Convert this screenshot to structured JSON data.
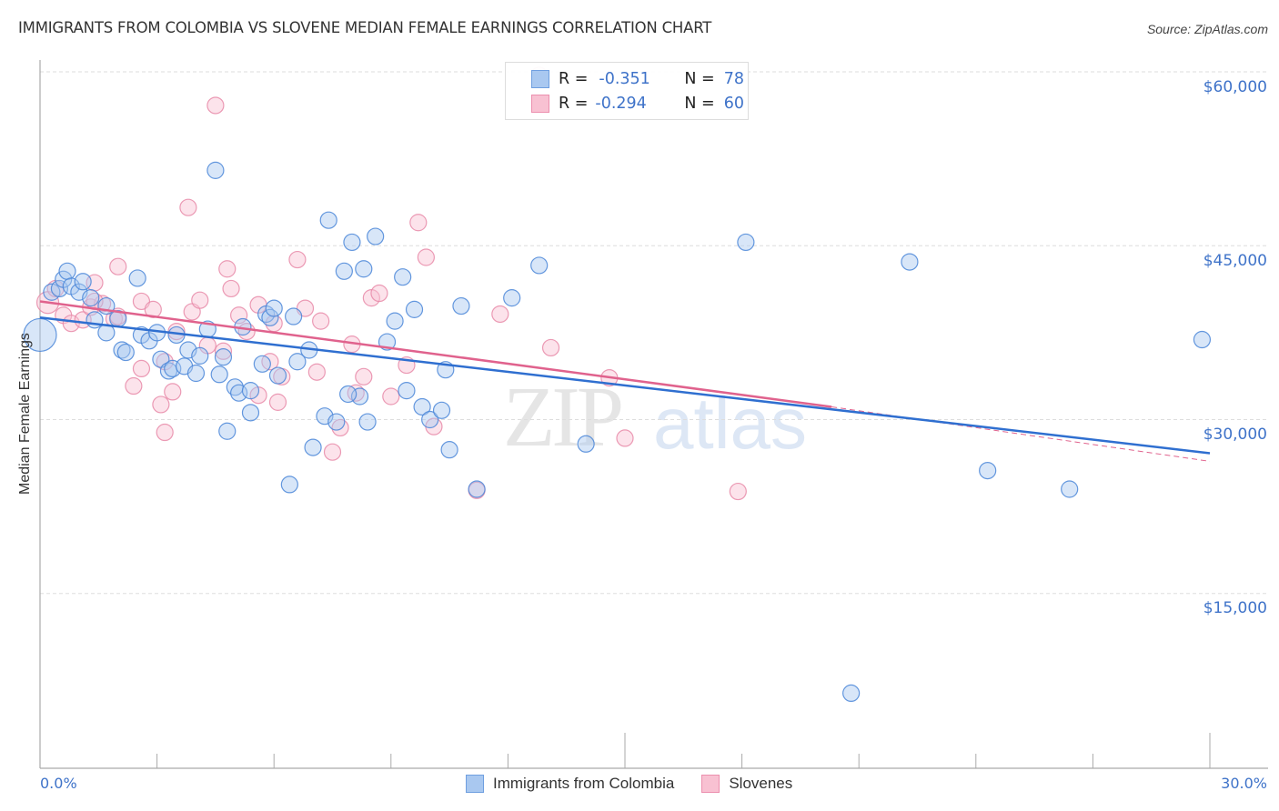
{
  "header": {
    "title": "IMMIGRANTS FROM COLOMBIA VS SLOVENE MEDIAN FEMALE EARNINGS CORRELATION CHART",
    "source": "Source: ZipAtlas.com"
  },
  "legend_box": {
    "rows": [
      {
        "r_label": "R =",
        "r_value": "-0.351",
        "n_label": "N =",
        "n_value": "78",
        "color": "#a9c8f0",
        "border": "#6f9fe0"
      },
      {
        "r_label": "R =",
        "r_value": "-0.294",
        "n_label": "N =",
        "n_value": "60",
        "color": "#f8c1d2",
        "border": "#ec8fae"
      }
    ]
  },
  "bottom_legend": {
    "items": [
      {
        "label": "Immigrants from Colombia",
        "color": "#a9c8f0",
        "border": "#6f9fe0"
      },
      {
        "label": "Slovenes",
        "color": "#f8c1d2",
        "border": "#ec8fae"
      }
    ]
  },
  "axes": {
    "ylabel": "Median Female Earnings",
    "yticks": [
      "$60,000",
      "$45,000",
      "$30,000",
      "$15,000"
    ],
    "xticks": [
      "0.0%",
      "30.0%"
    ]
  },
  "watermark": {
    "part1": "ZIP",
    "part2": "atlas"
  },
  "colors": {
    "blue_fill": "#a9c8f0",
    "blue_stroke": "#4a86d8",
    "blue_line": "#2f6fd0",
    "pink_fill": "#f8c1d2",
    "pink_stroke": "#e889a8",
    "pink_line": "#e0628d",
    "tick_label": "#3f73c9",
    "grid": "#dddddd"
  },
  "chart_data": {
    "type": "scatter",
    "title": "IMMIGRANTS FROM COLOMBIA VS SLOVENE MEDIAN FEMALE EARNINGS CORRELATION CHART",
    "xlabel": "",
    "ylabel": "Median Female Earnings",
    "xlim": [
      0,
      30
    ],
    "ylim": [
      0,
      62000
    ],
    "x_unit": "%",
    "y_ticks": [
      15000,
      30000,
      45000,
      60000
    ],
    "x_ticks": [
      0,
      30
    ],
    "grid": true,
    "legend_position": "top-center and bottom",
    "series": [
      {
        "name": "Immigrants from Colombia",
        "R": -0.351,
        "N": 78,
        "trend": {
          "x": [
            0,
            30
          ],
          "y": [
            38800,
            27100
          ]
        },
        "points": [
          [
            0.0,
            37300,
            18
          ],
          [
            0.3,
            41000
          ],
          [
            0.5,
            41300
          ],
          [
            0.6,
            42100
          ],
          [
            0.7,
            42800
          ],
          [
            0.8,
            41500
          ],
          [
            1.0,
            41000
          ],
          [
            1.1,
            41900
          ],
          [
            1.3,
            40500
          ],
          [
            1.4,
            38600
          ],
          [
            1.7,
            39800
          ],
          [
            1.7,
            37500
          ],
          [
            2.1,
            36000
          ],
          [
            2.2,
            35800
          ],
          [
            2.5,
            42200
          ],
          [
            2.6,
            37300
          ],
          [
            2.8,
            36800
          ],
          [
            3.0,
            37500
          ],
          [
            3.1,
            35200
          ],
          [
            3.3,
            34200
          ],
          [
            3.4,
            34400
          ],
          [
            3.5,
            37300
          ],
          [
            3.7,
            34600
          ],
          [
            3.8,
            36000
          ],
          [
            4.0,
            34000
          ],
          [
            4.1,
            35500
          ],
          [
            4.3,
            37800
          ],
          [
            4.6,
            33900
          ],
          [
            4.5,
            51500
          ],
          [
            4.7,
            35400
          ],
          [
            4.8,
            29000
          ],
          [
            5.0,
            32800
          ],
          [
            5.1,
            32300
          ],
          [
            5.2,
            38000
          ],
          [
            5.4,
            30600
          ],
          [
            5.7,
            34800
          ],
          [
            5.8,
            39100
          ],
          [
            5.9,
            38800
          ],
          [
            6.0,
            39600
          ],
          [
            6.1,
            33800
          ],
          [
            6.4,
            24400
          ],
          [
            6.5,
            38900
          ],
          [
            6.6,
            35000
          ],
          [
            6.9,
            36000
          ],
          [
            7.0,
            27600
          ],
          [
            7.3,
            30300
          ],
          [
            7.4,
            47200
          ],
          [
            7.6,
            29800
          ],
          [
            7.8,
            42800
          ],
          [
            8.0,
            45300
          ],
          [
            8.2,
            32000
          ],
          [
            8.3,
            43000
          ],
          [
            8.4,
            29800
          ],
          [
            8.6,
            45800
          ],
          [
            8.9,
            36700
          ],
          [
            9.1,
            38500
          ],
          [
            9.3,
            42300
          ],
          [
            9.4,
            32500
          ],
          [
            9.6,
            39500
          ],
          [
            9.8,
            31100
          ],
          [
            10.0,
            30000
          ],
          [
            10.3,
            30800
          ],
          [
            10.4,
            34300
          ],
          [
            10.5,
            27400
          ],
          [
            10.8,
            39800
          ],
          [
            11.2,
            24000
          ],
          [
            12.1,
            40500
          ],
          [
            12.8,
            43300
          ],
          [
            14.0,
            27900
          ],
          [
            18.1,
            45300
          ],
          [
            20.8,
            6400
          ],
          [
            22.3,
            43600
          ],
          [
            24.3,
            25600
          ],
          [
            26.4,
            24000
          ],
          [
            29.8,
            36900
          ],
          [
            2.0,
            38700
          ],
          [
            5.4,
            32500
          ],
          [
            7.9,
            32200
          ]
        ]
      },
      {
        "name": "Slovenes",
        "R": -0.294,
        "N": 60,
        "trend": {
          "x": [
            0,
            20.3
          ],
          "y": [
            40200,
            31100
          ]
        },
        "trend_extension_dashed": {
          "x": [
            20.3,
            30
          ],
          "y": [
            31100,
            26400
          ]
        },
        "points": [
          [
            0.2,
            40100,
            12
          ],
          [
            0.4,
            41300
          ],
          [
            0.6,
            39000
          ],
          [
            0.8,
            38300
          ],
          [
            1.1,
            38600
          ],
          [
            1.3,
            39700
          ],
          [
            1.4,
            41800
          ],
          [
            1.6,
            40000
          ],
          [
            1.9,
            38700
          ],
          [
            2.0,
            38900
          ],
          [
            2.0,
            43200
          ],
          [
            2.4,
            32900
          ],
          [
            2.6,
            34400
          ],
          [
            2.6,
            40200
          ],
          [
            2.9,
            39500
          ],
          [
            3.1,
            31300
          ],
          [
            3.2,
            28900
          ],
          [
            3.4,
            32400
          ],
          [
            3.5,
            37600
          ],
          [
            3.8,
            48300
          ],
          [
            3.9,
            39300
          ],
          [
            4.1,
            40300
          ],
          [
            4.3,
            36400
          ],
          [
            4.5,
            57100
          ],
          [
            4.7,
            35900
          ],
          [
            4.8,
            43000
          ],
          [
            4.9,
            41300
          ],
          [
            5.1,
            39000
          ],
          [
            5.3,
            37600
          ],
          [
            5.6,
            39900
          ],
          [
            5.9,
            35000
          ],
          [
            6.0,
            38300
          ],
          [
            6.1,
            31500
          ],
          [
            6.2,
            33700
          ],
          [
            6.6,
            43800
          ],
          [
            6.8,
            39600
          ],
          [
            7.1,
            34100
          ],
          [
            7.2,
            38500
          ],
          [
            7.5,
            27200
          ],
          [
            7.7,
            29300
          ],
          [
            8.1,
            32300
          ],
          [
            8.3,
            33700
          ],
          [
            8.5,
            40500
          ],
          [
            8.7,
            40900
          ],
          [
            9.0,
            32000
          ],
          [
            9.4,
            34700
          ],
          [
            9.7,
            47000
          ],
          [
            9.9,
            44000
          ],
          [
            10.1,
            29400
          ],
          [
            11.2,
            23900
          ],
          [
            11.8,
            39100
          ],
          [
            12.8,
            59700
          ],
          [
            13.1,
            36200
          ],
          [
            14.6,
            33600
          ],
          [
            15.0,
            28400
          ],
          [
            17.9,
            23800
          ],
          [
            3.2,
            35000
          ],
          [
            8.0,
            36500
          ],
          [
            1.4,
            40200
          ],
          [
            5.6,
            32100
          ]
        ]
      }
    ]
  }
}
